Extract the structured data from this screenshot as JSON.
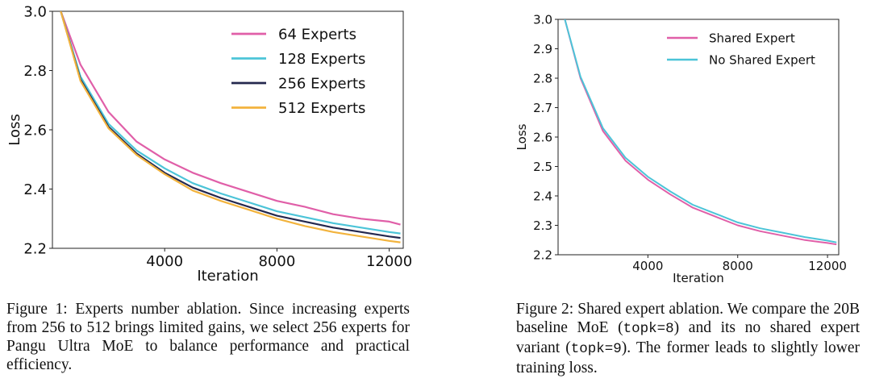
{
  "chart_data": [
    {
      "type": "line",
      "xlabel": "Iteration",
      "ylabel": "Loss",
      "xlim": [
        0,
        12500
      ],
      "ylim": [
        2.2,
        3.0
      ],
      "xticks": [
        4000,
        8000,
        12000
      ],
      "yticks": [
        2.2,
        2.4,
        2.6,
        2.8,
        3.0
      ],
      "grid": false,
      "legend_position": "top-right",
      "series": [
        {
          "name": "64 Experts",
          "color": "#e05fa8",
          "x": [
            300,
            1000,
            2000,
            3000,
            4000,
            5000,
            6000,
            7000,
            8000,
            9000,
            10000,
            11000,
            12000,
            12400
          ],
          "y": [
            3.0,
            2.82,
            2.66,
            2.56,
            2.5,
            2.455,
            2.42,
            2.39,
            2.36,
            2.34,
            2.315,
            2.3,
            2.29,
            2.28
          ]
        },
        {
          "name": "128 Experts",
          "color": "#4cc4d8",
          "x": [
            300,
            1000,
            2000,
            3000,
            4000,
            5000,
            6000,
            7000,
            8000,
            9000,
            10000,
            11000,
            12000,
            12400
          ],
          "y": [
            3.0,
            2.78,
            2.62,
            2.53,
            2.47,
            2.42,
            2.385,
            2.355,
            2.325,
            2.305,
            2.285,
            2.27,
            2.255,
            2.25
          ]
        },
        {
          "name": "256 Experts",
          "color": "#24284e",
          "x": [
            300,
            1000,
            2000,
            3000,
            4000,
            5000,
            6000,
            7000,
            8000,
            9000,
            10000,
            11000,
            12000,
            12400
          ],
          "y": [
            3.0,
            2.77,
            2.61,
            2.52,
            2.455,
            2.405,
            2.37,
            2.34,
            2.31,
            2.29,
            2.27,
            2.255,
            2.24,
            2.235
          ]
        },
        {
          "name": "512 Experts",
          "color": "#f2b33d",
          "x": [
            300,
            1000,
            2000,
            3000,
            4000,
            5000,
            6000,
            7000,
            8000,
            9000,
            10000,
            11000,
            12000,
            12400
          ],
          "y": [
            3.0,
            2.765,
            2.605,
            2.515,
            2.45,
            2.395,
            2.36,
            2.33,
            2.3,
            2.275,
            2.255,
            2.24,
            2.225,
            2.22
          ]
        }
      ]
    },
    {
      "type": "line",
      "xlabel": "Iteration",
      "ylabel": "Loss",
      "xlim": [
        0,
        12500
      ],
      "ylim": [
        2.2,
        3.0
      ],
      "xticks": [
        4000,
        8000,
        12000
      ],
      "yticks": [
        2.2,
        2.3,
        2.4,
        2.5,
        2.6,
        2.7,
        2.8,
        2.9,
        3.0
      ],
      "grid": false,
      "legend_position": "top-right",
      "series": [
        {
          "name": "Shared Expert",
          "color": "#e05fa8",
          "x": [
            300,
            1000,
            2000,
            3000,
            4000,
            5000,
            6000,
            7000,
            8000,
            9000,
            10000,
            11000,
            12000,
            12400
          ],
          "y": [
            3.0,
            2.8,
            2.62,
            2.52,
            2.455,
            2.405,
            2.36,
            2.33,
            2.3,
            2.28,
            2.265,
            2.25,
            2.24,
            2.235
          ]
        },
        {
          "name": "No Shared Expert",
          "color": "#4cc4d8",
          "x": [
            300,
            1000,
            2000,
            3000,
            4000,
            5000,
            6000,
            7000,
            8000,
            9000,
            10000,
            11000,
            12000,
            12400
          ],
          "y": [
            3.0,
            2.805,
            2.63,
            2.53,
            2.465,
            2.415,
            2.37,
            2.34,
            2.31,
            2.29,
            2.275,
            2.26,
            2.248,
            2.242
          ]
        }
      ]
    }
  ],
  "captions": {
    "fig1": "Figure 1: Experts number ablation. Since increasing experts from 256 to 512 brings limited gains, we select 256 experts for Pangu Ultra MoE  to balance performance and practical efficiency.",
    "fig2_part1": "Figure 2: Shared expert ablation. We compare the 20B baseline MoE (",
    "fig2_code1": "topk=8",
    "fig2_part2": ") and its no shared expert variant (",
    "fig2_code2": "topk=9",
    "fig2_part3": "). The former leads to slightly lower training loss."
  }
}
